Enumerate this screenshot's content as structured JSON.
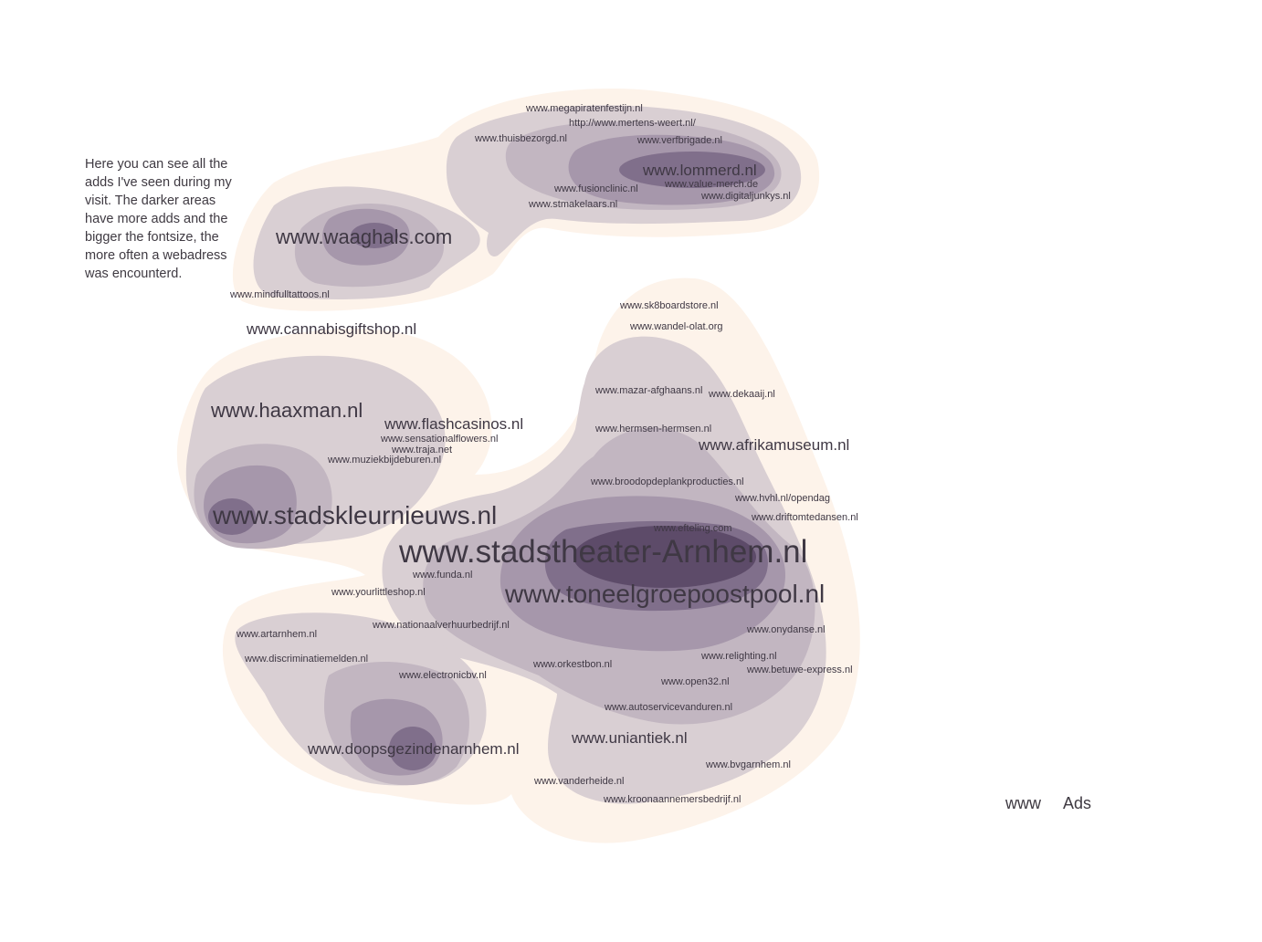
{
  "description": "Here you can see all the adds I've seen during my visit. The darker areas have more adds and the bigger the fontsize, the more often a webadress was encounterd.",
  "legend": {
    "www": "www",
    "ads": "Ads"
  },
  "colors": {
    "level0": "#fdf3ea",
    "level1": "#d9cfd3",
    "level2": "#c2b6c1",
    "level3": "#a697ab",
    "level4": "#806f8b",
    "level5": "#5d4b69",
    "text": "#3f3844"
  },
  "sites": [
    "www.megapiratenfestijn.nl",
    "http://www.mertens-weert.nl/",
    "www.thuisbezorgd.nl",
    "www.verfbrigade.nl",
    "www.lommerd.nl",
    "www.fusionclinic.nl",
    "www.value-merch.de",
    "www.digitaljunkys.nl",
    "www.stmakelaars.nl",
    "www.waaghals.com",
    "www.mindfulltattoos.nl",
    "www.cannabisgiftshop.nl",
    "www.sk8boardstore.nl",
    "www.wandel-olat.org",
    "www.haaxman.nl",
    "www.flashcasinos.nl",
    "www.sensationalflowers.nl",
    "www.traja.net",
    "www.muziekbijdeburen.nl",
    "www.mazar-afghaans.nl",
    "www.dekaaij.nl",
    "www.hermsen-hermsen.nl",
    "www.afrikamuseum.nl",
    "www.broodopdeplankproducties.nl",
    "www.hvhl.nl/opendag",
    "www.stadskleurnieuws.nl",
    "www.driftomtedansen.nl",
    "www.efteling.com",
    "www.stadstheater-Arnhem.nl",
    "www.funda.nl",
    "www.yourlittleshop.nl",
    "www.toneelgroepoostpool.nl",
    "www.nationaalverhuurbedrijf.nl",
    "www.onydanse.nl",
    "www.artarnhem.nl",
    "www.discriminatiemelden.nl",
    "www.relighting.nl",
    "www.orkestbon.nl",
    "www.betuwe-express.nl",
    "www.electronicbv.nl",
    "www.open32.nl",
    "www.autoservicevanduren.nl",
    "www.uniantiek.nl",
    "www.doopsgezindenarnhem.nl",
    "www.bvgarnhem.nl",
    "www.vanderheide.nl",
    "www.kroonaannemersbedrijf.nl"
  ]
}
